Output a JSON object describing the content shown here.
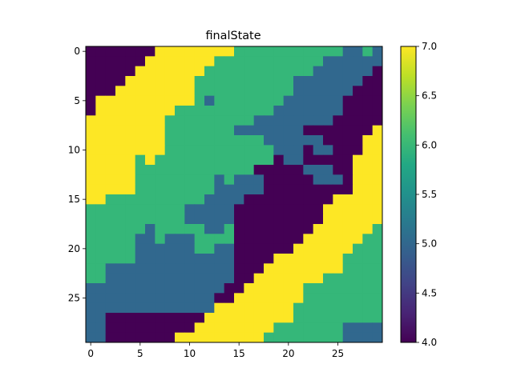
{
  "chart_data": {
    "type": "heatmap",
    "title": "finalState",
    "xlabel": "",
    "ylabel": "",
    "x_ticks": [
      0,
      5,
      10,
      15,
      20,
      25
    ],
    "y_ticks": [
      0,
      5,
      10,
      15,
      20,
      25
    ],
    "colorbar": {
      "min": 4.0,
      "max": 7.0,
      "ticks": [
        "4.0",
        "4.5",
        "5.0",
        "5.5",
        "6.0",
        "6.5",
        "7.0"
      ]
    },
    "colors": {
      "4": "#440154",
      "5": "#31688e",
      "6": "#35b779",
      "7": "#fde725"
    },
    "grid_rows": [
      "444444477777777666666666665565",
      "444444777777766666666666555555",
      "444447777777666666666665555554",
      "444477777776666666666555555544",
      "444777777776666666666555555444",
      "477777777776566666665555554444",
      "477777777666666666655555554444",
      "777777776666666665555555544444",
      "777777776666666555555544444447",
      "777777776666666666555555444477",
      "777777776666666666655545544477",
      "777776766666666666645544444777",
      "777776666666666664444455544777",
      "777776666666656555444445554777",
      "777776666666655555444444444777",
      "776666666666555544444444477777",
      "666666666655555444444444777777",
      "666666666655555444444444777777",
      "666666566666556444444447777776",
      "666665565556666444444477777766",
      "666665555556655444444777777666",
      "666665555555555444477777776666",
      "665555555555555444777777776666",
      "665555555555555447777777666666",
      "555555555555554477777766666666",
      "555555555555544777777766666666",
      "555555555555577777777666666666",
      "554444444444777777777666666666",
      "554444444447777777766666665555",
      "554444444777777777666666665555"
    ]
  }
}
